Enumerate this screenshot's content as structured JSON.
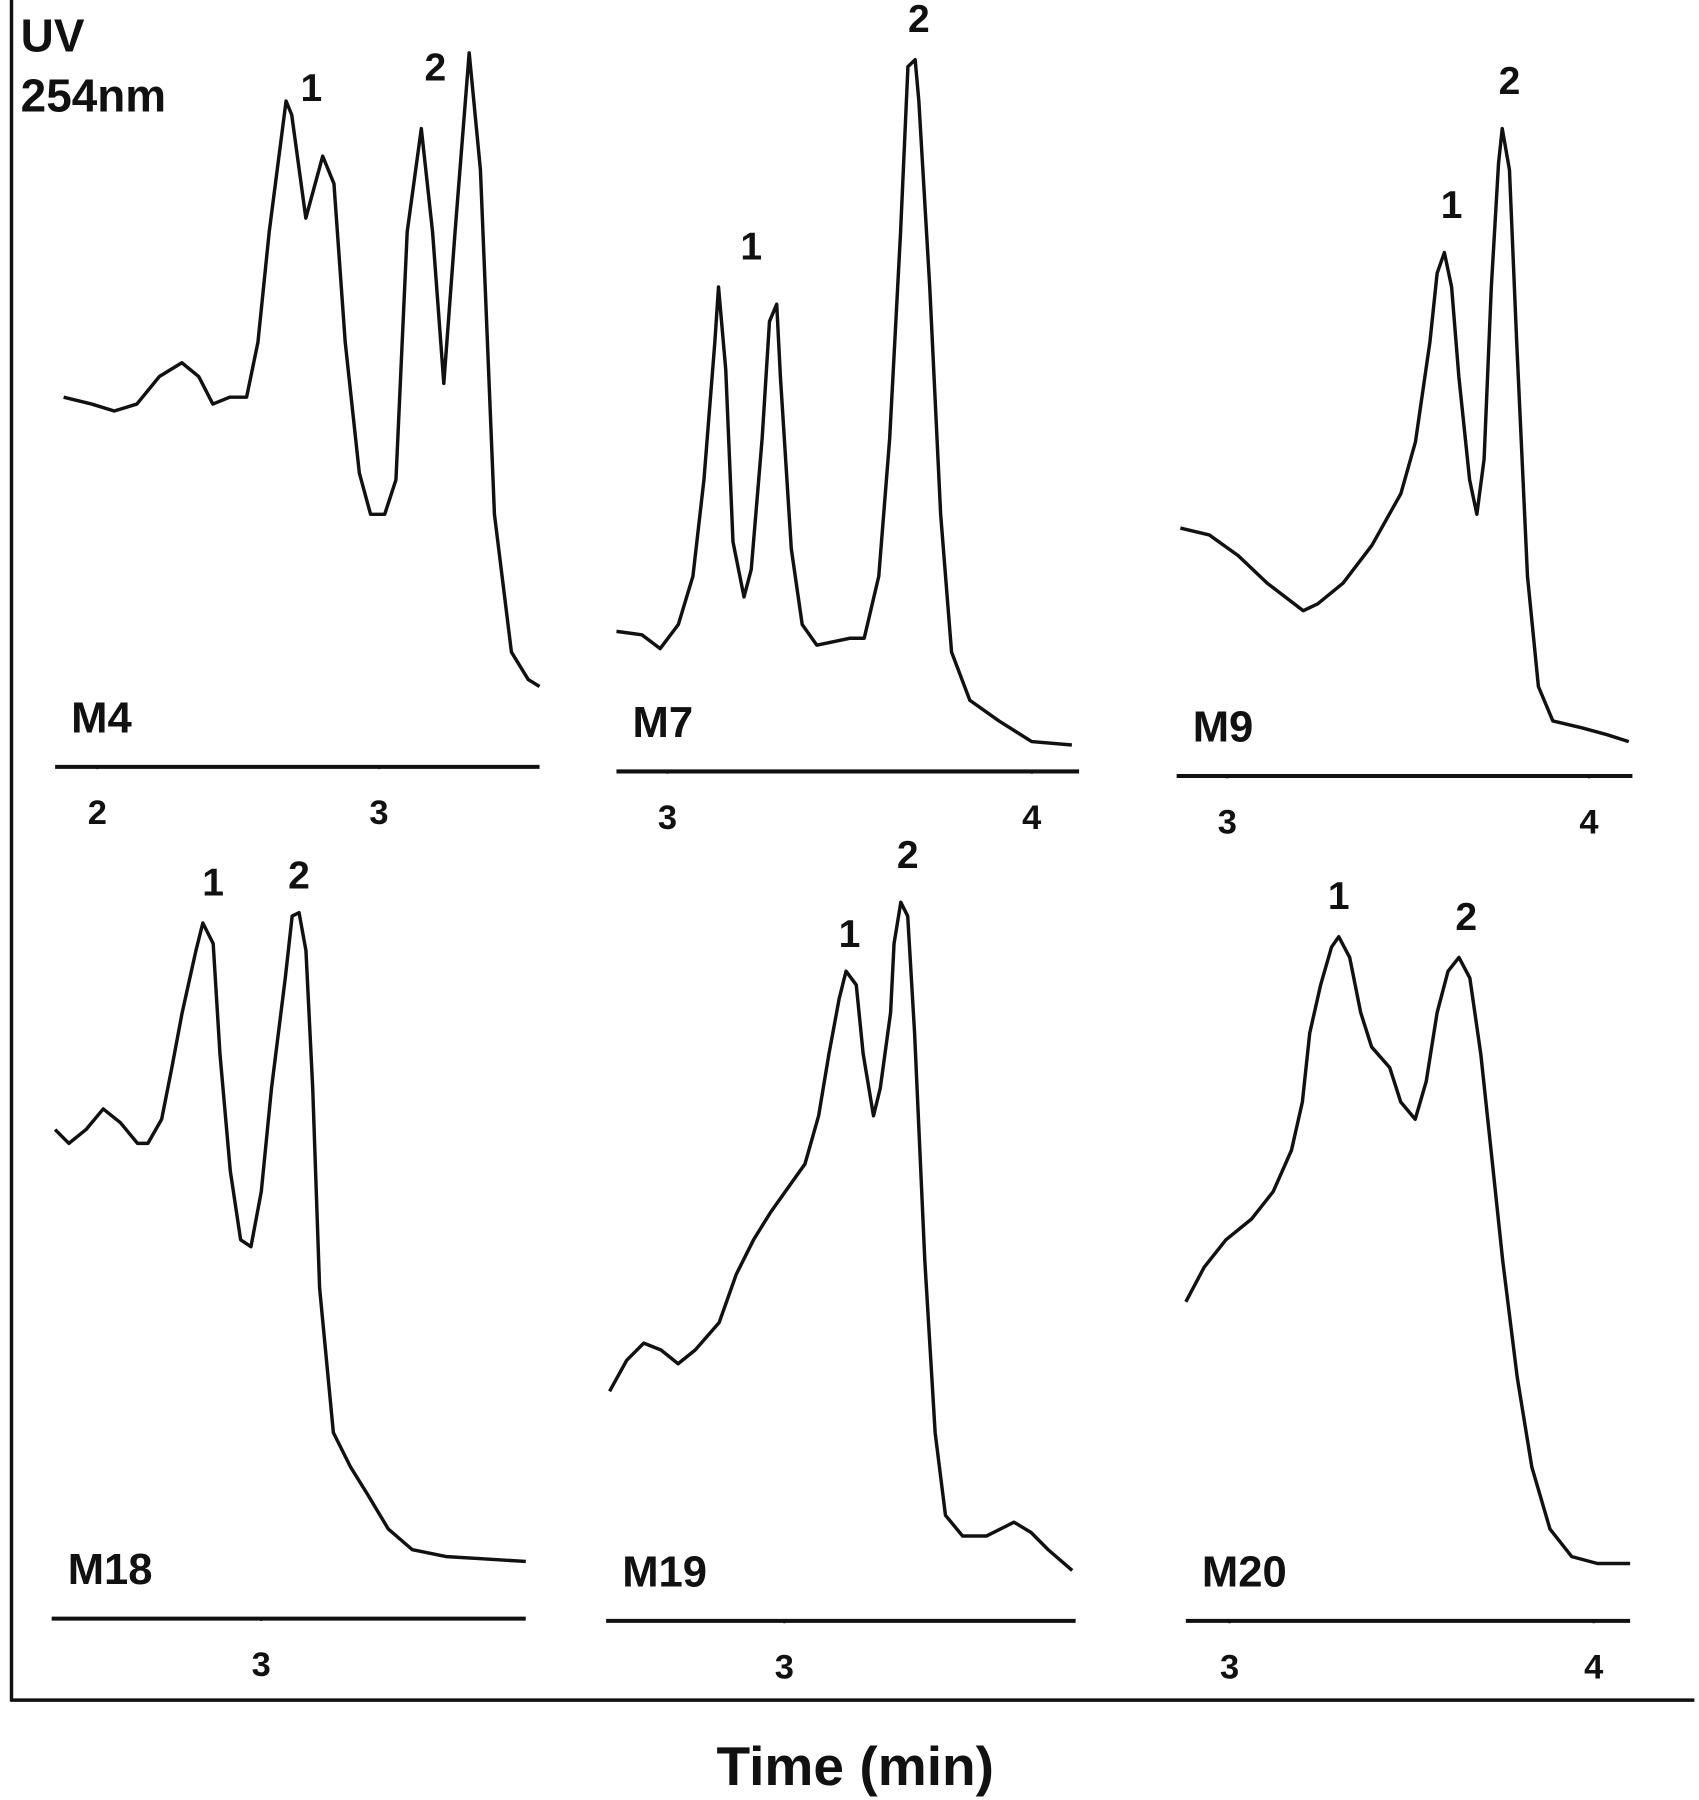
{
  "figure": {
    "y_label": [
      "UV",
      "254nm"
    ],
    "x_label": "Time (min)"
  },
  "chart_data": [
    {
      "type": "line",
      "label": "M4",
      "xlim": [
        1.85,
        3.57
      ],
      "xticks": [
        2,
        3
      ],
      "ylim": [
        -10,
        100
      ],
      "x": [
        1.88,
        1.98,
        2.06,
        2.14,
        2.22,
        2.3,
        2.36,
        2.41,
        2.47,
        2.53,
        2.57,
        2.61,
        2.67,
        2.69,
        2.74,
        2.8,
        2.84,
        2.88,
        2.93,
        2.97,
        3.02,
        3.06,
        3.1,
        3.15,
        3.19,
        3.23,
        3.27,
        3.32,
        3.36,
        3.41,
        3.47,
        3.53,
        3.57
      ],
      "values": [
        49,
        48,
        47,
        48,
        52,
        54,
        52,
        48,
        49,
        49,
        57,
        73,
        92,
        90,
        75,
        84,
        80,
        57,
        38,
        32,
        32,
        37,
        73,
        88,
        73,
        51,
        73,
        99,
        82,
        32,
        12,
        8,
        7
      ],
      "annotations": [
        {
          "text": "1",
          "x": 2.76,
          "y": 92
        },
        {
          "text": "2",
          "x": 3.2,
          "y": 95
        }
      ]
    },
    {
      "type": "line",
      "label": "M7",
      "xlim": [
        2.86,
        4.13
      ],
      "xticks": [
        3,
        4
      ],
      "ylim": [
        -10,
        100
      ],
      "x": [
        2.86,
        2.93,
        2.98,
        3.03,
        3.07,
        3.1,
        3.13,
        3.14,
        3.16,
        3.18,
        3.21,
        3.23,
        3.26,
        3.28,
        3.3,
        3.31,
        3.34,
        3.37,
        3.41,
        3.5,
        3.54,
        3.58,
        3.61,
        3.64,
        3.66,
        3.68,
        3.69,
        3.72,
        3.75,
        3.78,
        3.83,
        3.91,
        4.0,
        4.11
      ],
      "values": [
        15,
        14.5,
        12.5,
        16,
        23,
        37,
        57,
        65,
        53,
        28,
        20,
        24,
        43,
        60,
        62.5,
        52,
        27,
        16,
        13,
        14,
        14,
        23,
        43,
        73,
        97,
        98,
        92,
        65,
        32,
        12,
        5,
        2,
        -1,
        -1.5
      ],
      "annotations": [
        {
          "text": "1",
          "x": 3.23,
          "y": 69
        },
        {
          "text": "2",
          "x": 3.69,
          "y": 102
        }
      ]
    },
    {
      "type": "line",
      "label": "M9",
      "xlim": [
        2.86,
        4.12
      ],
      "xticks": [
        3,
        4
      ],
      "ylim": [
        -10,
        100
      ],
      "x": [
        2.87,
        2.95,
        3.03,
        3.11,
        3.21,
        3.25,
        3.32,
        3.4,
        3.48,
        3.52,
        3.56,
        3.58,
        3.6,
        3.62,
        3.64,
        3.67,
        3.69,
        3.71,
        3.73,
        3.75,
        3.76,
        3.78,
        3.8,
        3.83,
        3.86,
        3.9,
        3.98,
        4.05,
        4.11
      ],
      "values": [
        30,
        29,
        26,
        22,
        18,
        19,
        22,
        27.5,
        35,
        42.5,
        57,
        67,
        70,
        65,
        52,
        37,
        32,
        40,
        65,
        83,
        88,
        82,
        57,
        23,
        7,
        2,
        1,
        0,
        -1
      ],
      "annotations": [
        {
          "text": "1",
          "x": 3.62,
          "y": 75
        },
        {
          "text": "2",
          "x": 3.78,
          "y": 93
        }
      ]
    },
    {
      "type": "line",
      "label": "M18",
      "xlim": [
        2.39,
        3.77
      ],
      "xticks": [
        3
      ],
      "ylim": [
        -10,
        100
      ],
      "x": [
        2.4,
        2.44,
        2.49,
        2.54,
        2.59,
        2.64,
        2.67,
        2.71,
        2.74,
        2.77,
        2.81,
        2.83,
        2.86,
        2.88,
        2.91,
        2.94,
        2.97,
        3.0,
        3.03,
        3.07,
        3.09,
        3.11,
        3.13,
        3.15,
        3.17,
        3.21,
        3.26,
        3.31,
        3.37,
        3.44,
        3.54,
        3.64,
        3.77
      ],
      "values": [
        66,
        64,
        66,
        69,
        67,
        64,
        64,
        67.5,
        75,
        83,
        92,
        96,
        93,
        77,
        60,
        50,
        49,
        57,
        72,
        88,
        97,
        97.5,
        92,
        72,
        43,
        22,
        17,
        13,
        8,
        5,
        4,
        3.7,
        3.3
      ],
      "annotations": [
        {
          "text": "1",
          "x": 2.86,
          "y": 100
        },
        {
          "text": "2",
          "x": 3.11,
          "y": 101
        }
      ]
    },
    {
      "type": "line",
      "label": "M19",
      "xlim": [
        2.48,
        3.85
      ],
      "xticks": [
        3
      ],
      "ylim": [
        -10,
        100
      ],
      "x": [
        2.49,
        2.54,
        2.59,
        2.64,
        2.69,
        2.74,
        2.81,
        2.86,
        2.91,
        2.96,
        3.01,
        3.06,
        3.1,
        3.13,
        3.16,
        3.18,
        3.21,
        3.23,
        3.26,
        3.28,
        3.31,
        3.32,
        3.34,
        3.36,
        3.38,
        3.41,
        3.44,
        3.47,
        3.52,
        3.59,
        3.67,
        3.72,
        3.77,
        3.84
      ],
      "values": [
        28,
        32.5,
        35,
        34,
        32,
        34,
        38,
        45,
        50,
        54,
        57.5,
        61,
        68,
        77,
        85,
        89,
        87,
        77,
        68,
        72,
        83,
        93,
        99,
        97,
        80,
        47,
        22,
        10,
        7,
        7,
        9,
        7.5,
        5,
        2
      ],
      "annotations": [
        {
          "text": "1",
          "x": 3.19,
          "y": 92.5
        },
        {
          "text": "2",
          "x": 3.36,
          "y": 104
        }
      ]
    },
    {
      "type": "line",
      "label": "M20",
      "xlim": [
        2.88,
        4.1
      ],
      "xticks": [
        3,
        4
      ],
      "ylim": [
        -10,
        100
      ],
      "x": [
        2.88,
        2.93,
        2.99,
        3.06,
        3.12,
        3.17,
        3.2,
        3.22,
        3.25,
        3.28,
        3.3,
        3.33,
        3.36,
        3.39,
        3.44,
        3.47,
        3.51,
        3.54,
        3.57,
        3.6,
        3.63,
        3.66,
        3.69,
        3.72,
        3.75,
        3.79,
        3.83,
        3.88,
        3.94,
        4.01,
        4.1
      ],
      "values": [
        41,
        46,
        50,
        53,
        57,
        63,
        70,
        80,
        87,
        92.5,
        94,
        91,
        83,
        78,
        75,
        70,
        67.5,
        73,
        83,
        89,
        91,
        88,
        77,
        62,
        47,
        30,
        17,
        8,
        4,
        3,
        3
      ],
      "annotations": [
        {
          "text": "1",
          "x": 3.3,
          "y": 98
        },
        {
          "text": "2",
          "x": 3.65,
          "y": 95
        }
      ]
    }
  ]
}
